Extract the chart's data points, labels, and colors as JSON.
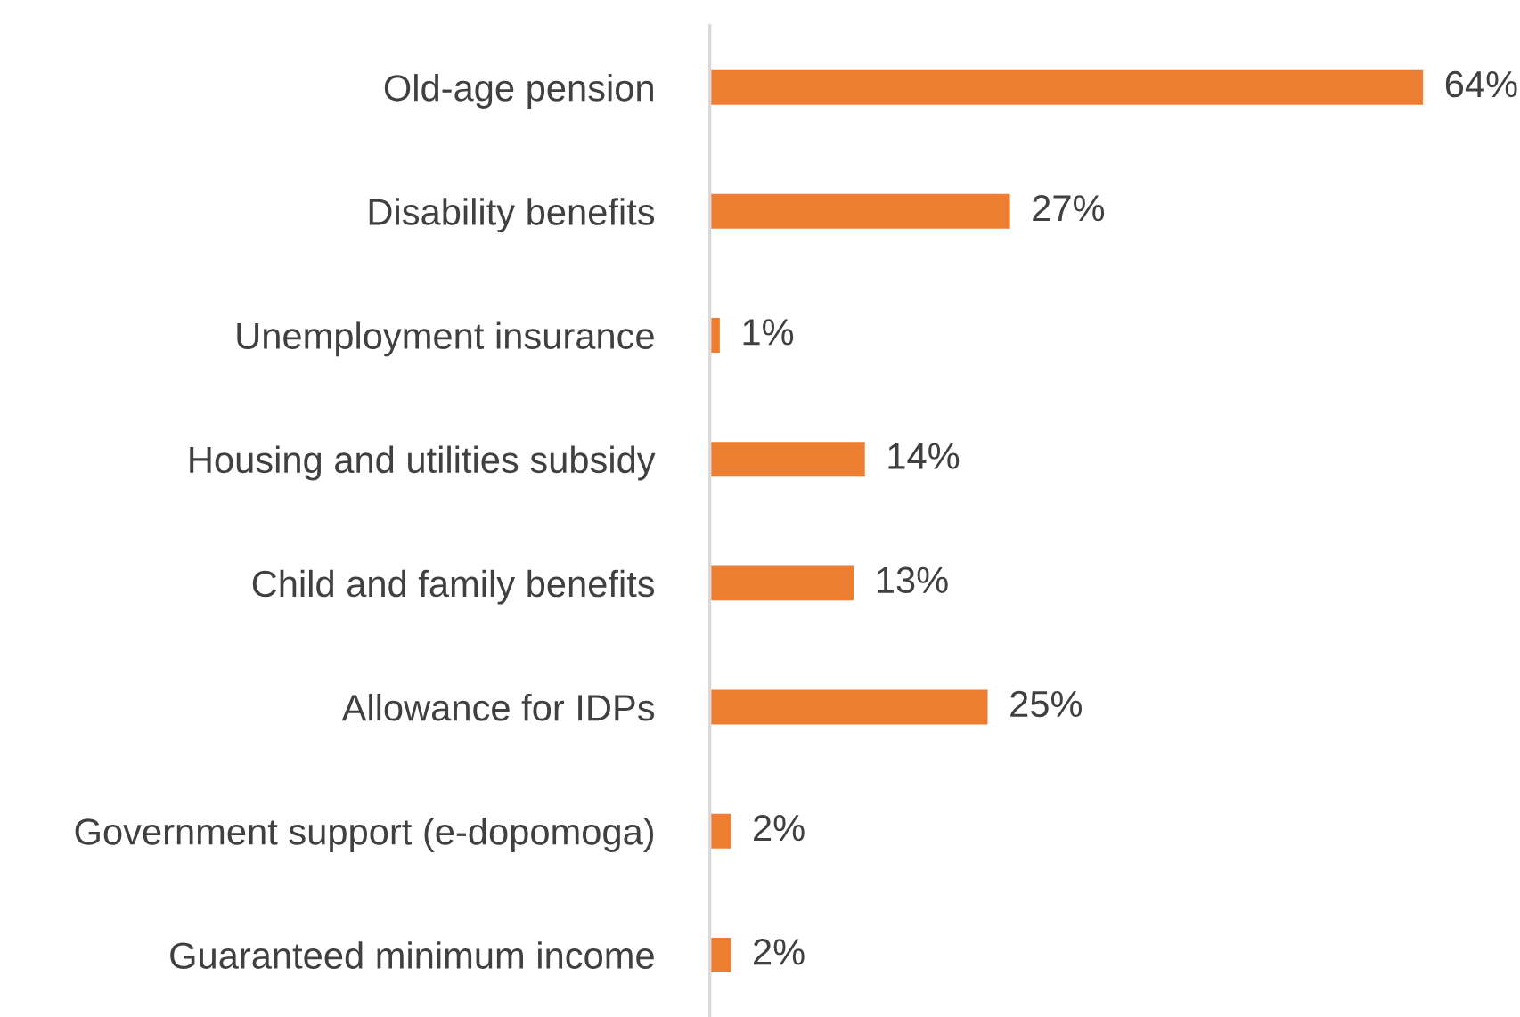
{
  "chart_data": {
    "type": "bar",
    "orientation": "horizontal",
    "categories": [
      "Old-age pension",
      "Disability benefits",
      "Unemployment insurance",
      "Housing and utilities subsidy",
      "Child and family benefits",
      "Allowance for IDPs",
      "Government support (e-dopomoga)",
      "Guaranteed minimum income"
    ],
    "values": [
      64,
      27,
      1,
      14,
      13,
      25,
      2,
      2
    ],
    "value_labels": [
      "64%",
      "27%",
      "1%",
      "14%",
      "13%",
      "25%",
      "2%",
      "2%"
    ],
    "color": "#ed7d31",
    "tick_labels": "y",
    "grid": false,
    "legend": false
  }
}
